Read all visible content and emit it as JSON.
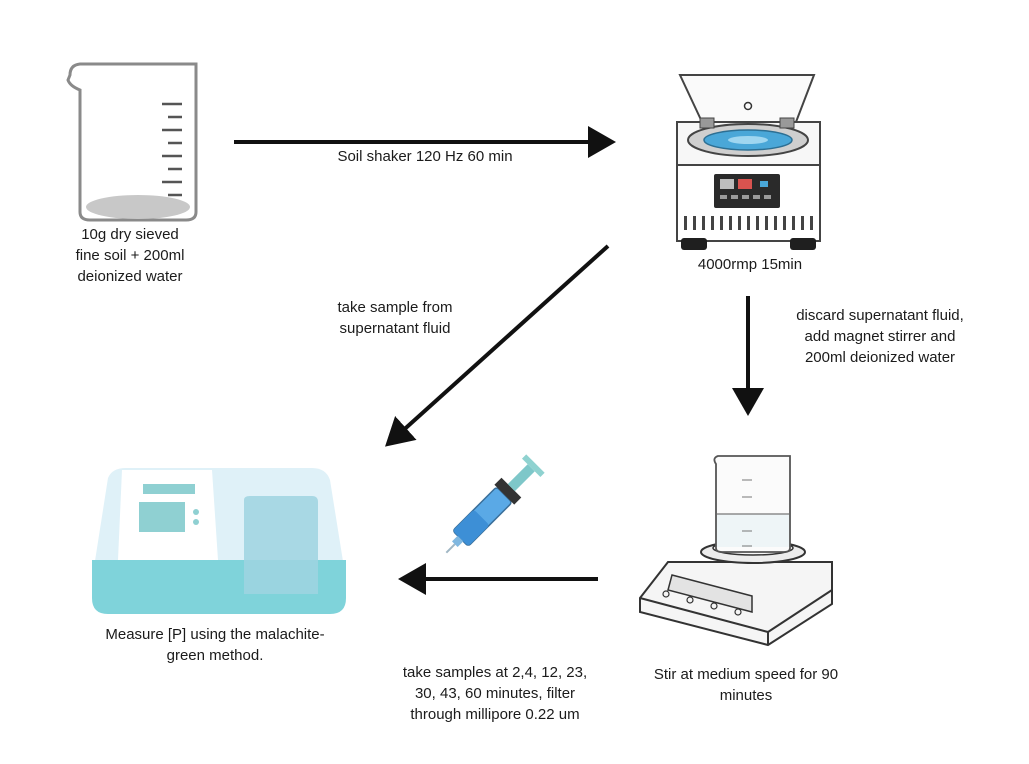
{
  "steps": {
    "beaker": "10g dry sieved\nfine soil + 200ml\ndeionized water",
    "shaker": "Soil shaker 120 Hz 60 min",
    "centrifuge": "4000rmp 15min",
    "supernatant_sample": "take sample from\nsupernatant fluid",
    "discard": "discard supernatant fluid,\nadd magnet stirrer and\n200ml deionized water",
    "measure": "Measure [P] using the malachite-\ngreen method.",
    "timed_samples": "take samples at 2,4, 12, 23,\n30, 43, 60 minutes,  filter\nthrough millipore 0.22 um",
    "stir": "Stir at medium speed for 90\nminutes"
  },
  "icons": {
    "beaker": "beaker-icon",
    "centrifuge": "centrifuge-icon",
    "stirrer": "magnetic-stirrer-icon",
    "syringe": "syringe-icon",
    "spectrophotometer": "spectrophotometer-icon"
  },
  "colors": {
    "arrow": "#111111",
    "teal": "#7fd3da",
    "light_blue": "#d9f0f7",
    "screen": "#8fd0d2"
  }
}
